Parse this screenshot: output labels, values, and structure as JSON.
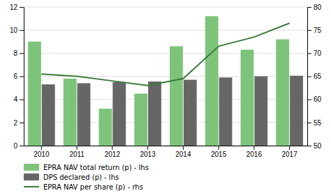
{
  "chart_data": {
    "type": "bar",
    "categories": [
      "2010",
      "2011",
      "2012",
      "2013",
      "2014",
      "2015",
      "2016",
      "2017"
    ],
    "series": [
      {
        "name": "EPRA NAV total return (p) - lhs",
        "type": "bar",
        "color": "#7DC47A",
        "values": [
          9.0,
          5.8,
          3.2,
          4.5,
          8.6,
          11.2,
          8.3,
          9.2
        ]
      },
      {
        "name": "DPS declared (p) - lhs",
        "type": "bar",
        "color": "#666666",
        "values": [
          5.3,
          5.4,
          5.5,
          5.55,
          5.7,
          5.9,
          6.0,
          6.05
        ]
      },
      {
        "name": "EPRA NAV per share (p) - rhs",
        "type": "line",
        "axis": "y2",
        "color": "#3A7A3A",
        "values": [
          65.5,
          65.0,
          64.0,
          63.0,
          64.5,
          71.5,
          73.5,
          76.5
        ]
      }
    ],
    "ylim": [
      0.0,
      12.0
    ],
    "yticks": [
      0.0,
      2.0,
      4.0,
      6.0,
      8.0,
      10.0,
      12.0
    ],
    "y2lim": [
      50.0,
      80.0
    ],
    "y2ticks": [
      50.0,
      55.0,
      60.0,
      65.0,
      70.0,
      75.0,
      80.0
    ],
    "grid": true,
    "legend": "bottom"
  }
}
